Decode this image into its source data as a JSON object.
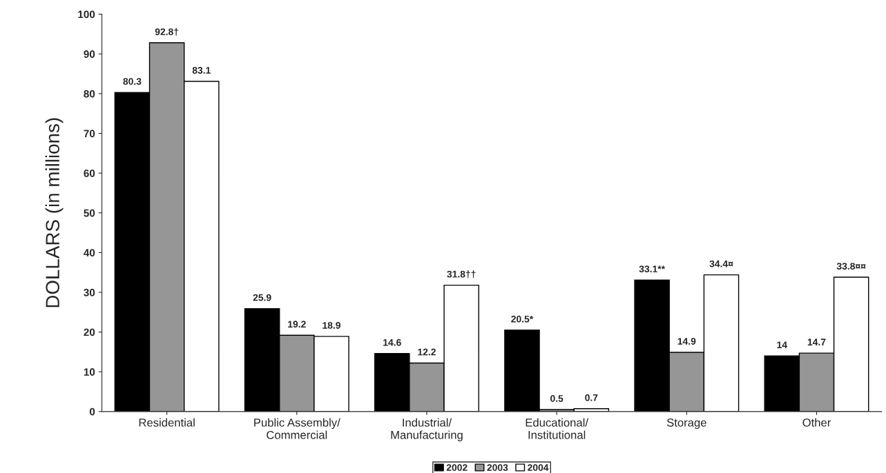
{
  "chart_data": {
    "type": "bar",
    "ylabel": "DOLLARS (in millions)",
    "categories": [
      "Residential",
      "Public Assembly/\nCommercial",
      "Industrial/\nManufacturing",
      "Educational/\nInstitutional",
      "Storage",
      "Other"
    ],
    "series": [
      {
        "name": "2002",
        "color": "#000000",
        "values": [
          80.3,
          25.9,
          14.6,
          20.5,
          33.1,
          14
        ],
        "value_labels": [
          "80.3",
          "25.9",
          "14.6",
          "20.5*",
          "33.1**",
          "14"
        ]
      },
      {
        "name": "2003",
        "color": "#969696",
        "values": [
          92.8,
          19.2,
          12.2,
          0.5,
          14.9,
          14.7
        ],
        "value_labels": [
          "92.8†",
          "19.2",
          "12.2",
          "0.5",
          "14.9",
          "14.7"
        ]
      },
      {
        "name": "2004",
        "color": "#ffffff",
        "values": [
          83.1,
          18.9,
          31.8,
          0.7,
          34.4,
          33.8
        ],
        "value_labels": [
          "83.1",
          "18.9",
          "31.8††",
          "0.7",
          "34.4¤",
          "33.8¤¤"
        ]
      }
    ],
    "ylim": [
      0,
      100
    ],
    "yticks": [
      0,
      10,
      20,
      30,
      40,
      50,
      60,
      70,
      80,
      90,
      100
    ],
    "grid": false,
    "legend": "bottom"
  }
}
